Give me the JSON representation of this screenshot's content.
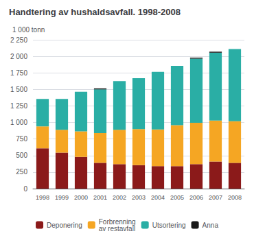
{
  "chart_data": {
    "type": "bar",
    "title": "Handtering av hushaldsavfall. 1998-2008",
    "ylabel": "1 000 tonn",
    "categories": [
      "1998",
      "1999",
      "2000",
      "2001",
      "2002",
      "2003",
      "2004",
      "2005",
      "2006",
      "2007",
      "2008"
    ],
    "series": [
      {
        "name": "Deponering",
        "color": "#8B1A1A",
        "values": [
          610,
          545,
          480,
          390,
          370,
          355,
          340,
          340,
          370,
          410,
          390
        ]
      },
      {
        "name": "Forbrenning\nav restavfall",
        "color": "#F5A623",
        "values": [
          330,
          345,
          385,
          450,
          520,
          545,
          555,
          620,
          625,
          620,
          630
        ]
      },
      {
        "name": "Utsortering",
        "color": "#2AAEA5",
        "values": [
          415,
          465,
          600,
          660,
          735,
          770,
          870,
          895,
          970,
          1025,
          1090
        ]
      },
      {
        "name": "Anna",
        "color": "#1A1A1A",
        "values": [
          0,
          0,
          0,
          15,
          0,
          0,
          0,
          0,
          15,
          15,
          0
        ]
      }
    ],
    "stacked": true,
    "ylim": [
      0,
      2250
    ],
    "yticks": [
      0,
      250,
      500,
      750,
      {
        "value": 1000,
        "label": "1 000"
      },
      {
        "value": 1250,
        "label": "1 250"
      },
      {
        "value": 1500,
        "label": "1 500"
      },
      {
        "value": 1750,
        "label": "1 750"
      },
      {
        "value": 2000,
        "label": "2 000"
      },
      {
        "value": 2250,
        "label": "2 250"
      }
    ],
    "grid": true,
    "legend": "bottom"
  }
}
